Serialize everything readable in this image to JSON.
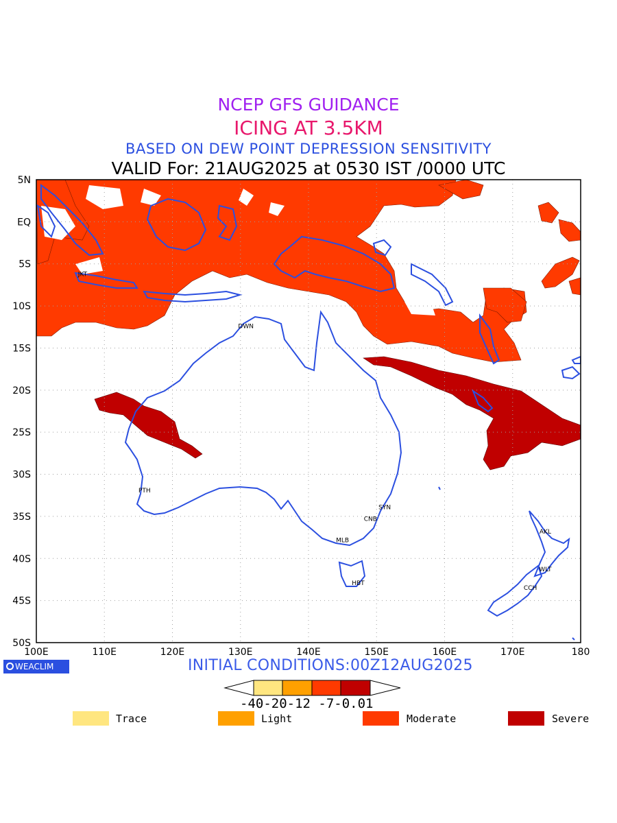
{
  "titles": {
    "line1": "NCEP GFS GUIDANCE",
    "line2": "ICING AT 3.5KM",
    "line3": "BASED ON DEW POINT DEPRESSION SENSITIVITY",
    "line4": "VALID For: 21AUG2025 at 0530 IST /0000 UTC"
  },
  "initial_conditions": "INITIAL CONDITIONS:00Z12AUG2025",
  "brand": "WEACLIM",
  "axes": {
    "lon_labels": [
      "100E",
      "110E",
      "120E",
      "130E",
      "140E",
      "150E",
      "160E",
      "170E",
      "180"
    ],
    "lat_labels": [
      "5N",
      "EQ",
      "5S",
      "10S",
      "15S",
      "20S",
      "25S",
      "30S",
      "35S",
      "40S",
      "45S",
      "50S"
    ],
    "lon_range": [
      100,
      180
    ],
    "lat_range": [
      5,
      -50
    ],
    "grid": "dotted"
  },
  "stations": [
    {
      "name": "JKT",
      "lon": 106.8,
      "lat": -6.2
    },
    {
      "name": "DWN",
      "lon": 130.8,
      "lat": -12.4
    },
    {
      "name": "PTH",
      "lon": 115.9,
      "lat": -31.9
    },
    {
      "name": "SYN",
      "lon": 151.2,
      "lat": -33.9
    },
    {
      "name": "CNB",
      "lon": 149.1,
      "lat": -35.3
    },
    {
      "name": "MLB",
      "lon": 145.0,
      "lat": -37.8
    },
    {
      "name": "HBT",
      "lon": 147.3,
      "lat": -42.9
    },
    {
      "name": "AKL",
      "lon": 174.8,
      "lat": -36.8
    },
    {
      "name": "WLT",
      "lon": 174.8,
      "lat": -41.3
    },
    {
      "name": "CCH",
      "lon": 172.6,
      "lat": -43.5
    }
  ],
  "colorbar": {
    "ticks": "-40-20-12 -7-0.01",
    "colors": [
      "#ffe680",
      "#ffa000",
      "#ff3a00",
      "#c00000"
    ]
  },
  "legend": [
    {
      "label": "Trace",
      "color": "#ffe680"
    },
    {
      "label": "Light",
      "color": "#ffa000"
    },
    {
      "label": "Moderate",
      "color": "#ff3a00"
    },
    {
      "label": "Severe",
      "color": "#c00000"
    }
  ],
  "colors": {
    "moderate": "#ff3a00",
    "severe": "#c00000",
    "coast": "#2b4fe0"
  }
}
